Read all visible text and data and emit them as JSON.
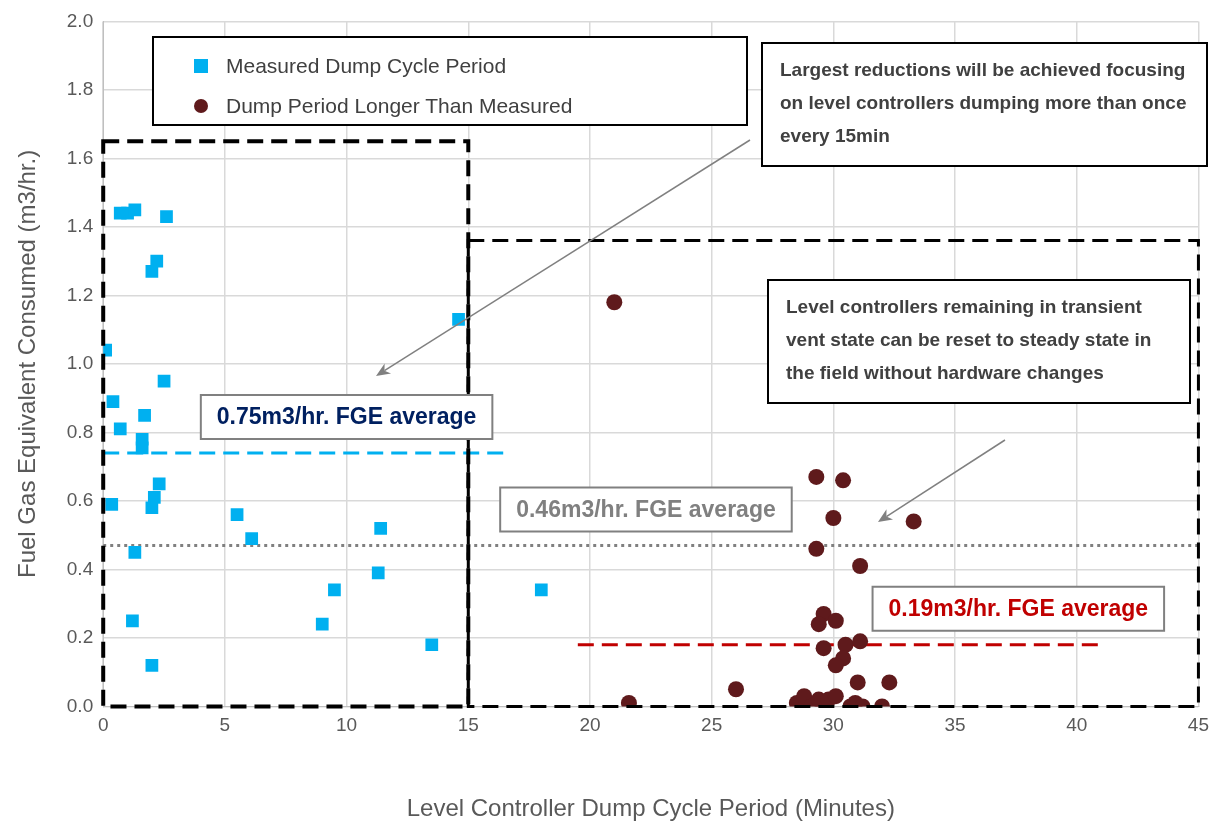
{
  "chart_data": {
    "type": "scatter",
    "xlabel": "Level Controller Dump Cycle Period (Minutes)",
    "ylabel": "Fuel Gas Equivalent Consumed (m3/hr.)",
    "xlim": [
      0,
      45
    ],
    "xticks": [
      0,
      5,
      10,
      15,
      20,
      25,
      30,
      35,
      40,
      45
    ],
    "ylim": [
      0,
      2
    ],
    "yticks": [
      {
        "value": 0,
        "label": "0.0"
      },
      {
        "value": 0.2,
        "label": "0.2"
      },
      {
        "value": 0.4,
        "label": "0.4"
      },
      {
        "value": 0.6,
        "label": "0.6"
      },
      {
        "value": 0.8,
        "label": "0.8"
      },
      {
        "value": 1,
        "label": "1.0"
      },
      {
        "value": 1.2,
        "label": "1.2"
      },
      {
        "value": 1.4,
        "label": "1.4"
      },
      {
        "value": 1.6,
        "label": "1.6"
      },
      {
        "value": 1.8,
        "label": "1.8"
      },
      {
        "value": 2,
        "label": "2.0"
      }
    ],
    "grid": true,
    "legend": "top left",
    "series": [
      {
        "name": "Measured Dump Cycle Period",
        "color": "#00b0f0",
        "marker": "square",
        "x": [
          0.1,
          0.4,
          0.35,
          0.7,
          0.7,
          1.0,
          1.3,
          2.6,
          2.0,
          2.2,
          2.5,
          1.7,
          1.6,
          1.6,
          2.3,
          2.1,
          2.0,
          1.3,
          1.2,
          2.0,
          5.5,
          6.1,
          9.0,
          9.5,
          11.3,
          11.4,
          13.5,
          14.6,
          18.0
        ],
        "values": [
          1.04,
          0.89,
          0.59,
          0.81,
          1.44,
          1.44,
          1.45,
          1.43,
          1.27,
          1.3,
          0.95,
          0.85,
          0.78,
          0.755,
          0.65,
          0.61,
          0.58,
          0.45,
          0.25,
          0.12,
          0.56,
          0.49,
          0.24,
          0.34,
          0.39,
          0.52,
          0.18,
          1.13,
          0.34
        ]
      },
      {
        "name": "Dump Period Longer Than Measured",
        "color": "#5f1a1c",
        "marker": "circle",
        "x": [
          21.0,
          21.6,
          26.0,
          29.3,
          30.4,
          30.0,
          33.3,
          29.3,
          31.1,
          29.6,
          29.4,
          30.1,
          29.6,
          30.5,
          31.1,
          30.4,
          30.1,
          31.0,
          32.3,
          28.5,
          28.8,
          29.1,
          29.4,
          29.8,
          30.1,
          30.7,
          30.9,
          31.2,
          32.0
        ],
        "values": [
          1.18,
          0.01,
          0.05,
          0.67,
          0.66,
          0.55,
          0.54,
          0.46,
          0.41,
          0.27,
          0.24,
          0.25,
          0.17,
          0.18,
          0.19,
          0.14,
          0.12,
          0.07,
          0.07,
          0.01,
          0.03,
          0.0,
          0.02,
          0.02,
          0.03,
          0.0,
          0.01,
          0.0,
          0.0
        ]
      },
      {
        "type": "line",
        "color": "#00b0f0",
        "line_style": "dashed",
        "marker": "none",
        "x": [
          0,
          16.5
        ],
        "values": [
          0.74,
          0.74
        ]
      },
      {
        "type": "line",
        "color": "#808080",
        "line_style": "dotted",
        "marker": "none",
        "x": [
          0,
          45
        ],
        "values": [
          0.47,
          0.47
        ]
      },
      {
        "type": "line",
        "color": "#c00000",
        "line_style": "dashed",
        "marker": "none",
        "x": [
          19.5,
          41
        ],
        "values": [
          0.18,
          0.18
        ]
      }
    ],
    "annotations": [
      {
        "text": "0.75m3/hr. FGE average",
        "x": 10,
        "y": 0.74
      },
      {
        "text": "0.46m3/hr. FGE average",
        "x": 22.3,
        "y": 0.47
      },
      {
        "text": "0.19m3/hr. FGE average",
        "x": 37.6,
        "y": 0.18
      },
      "Largest reductions will be achieved focusing on level controllers dumping more than once every 15min",
      "Level controllers remaining in transient vent state can be reset to steady state in the field without hardware changes"
    ]
  }
}
